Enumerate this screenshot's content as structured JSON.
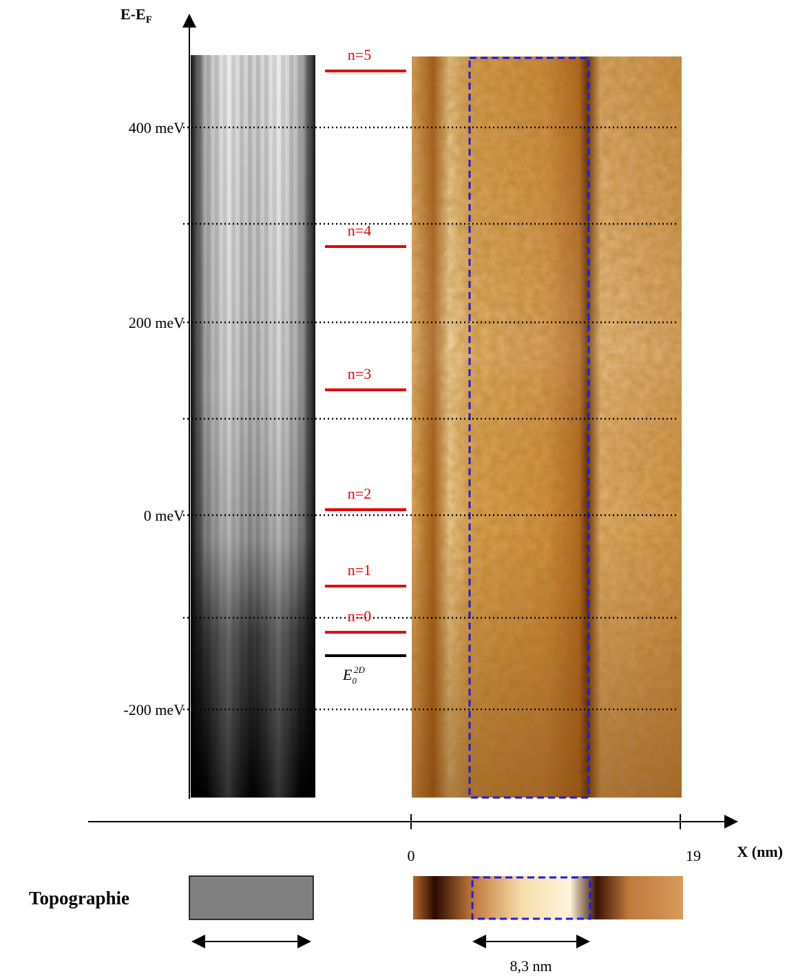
{
  "axis": {
    "title": "E-E",
    "title_sub": "F",
    "ticks": [
      "400 meV",
      "200 meV",
      "0 meV",
      "-200 meV"
    ]
  },
  "levels": [
    "n=5",
    "n=4",
    "n=3",
    "n=2",
    "n=1",
    "n=0"
  ],
  "e0": {
    "base": "E",
    "sub": "0",
    "sup": "2D"
  },
  "x_axis": {
    "ticks": [
      "0",
      "19"
    ],
    "label": "X (nm)"
  },
  "topography": {
    "label": "Topographie",
    "width_label": "8,3 nm"
  }
}
